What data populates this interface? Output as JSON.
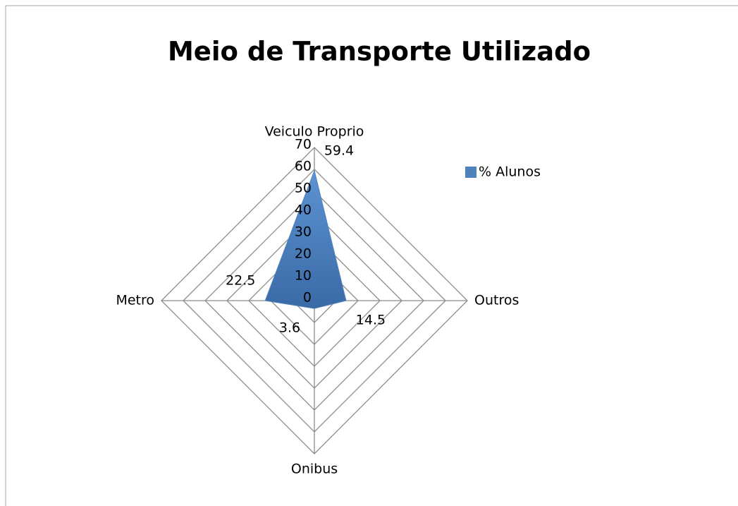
{
  "chart_data": {
    "type": "radar",
    "title": "Meio de Transporte Utilizado",
    "categories": [
      "Veiculo Proprio",
      "Outros",
      "Onibus",
      "Metro"
    ],
    "series": [
      {
        "name": "% Alunos",
        "color": "#4f81bd",
        "values": [
          59.4,
          14.5,
          3.6,
          22.5
        ]
      }
    ],
    "ylim": [
      0,
      70
    ],
    "yticks": [
      0,
      10,
      20,
      30,
      40,
      50,
      60,
      70
    ],
    "grid": true,
    "legend": "right"
  }
}
